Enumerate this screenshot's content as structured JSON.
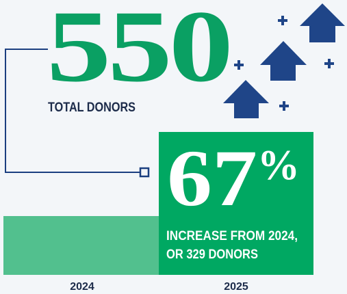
{
  "headline": {
    "number": "550",
    "label": "TOTAL DONORS"
  },
  "highlight": {
    "number": "67",
    "symbol": "%",
    "line1": "INCREASE FROM 2024,",
    "line2": "OR 329 DONORS"
  },
  "years": [
    "2024",
    "2025"
  ]
}
